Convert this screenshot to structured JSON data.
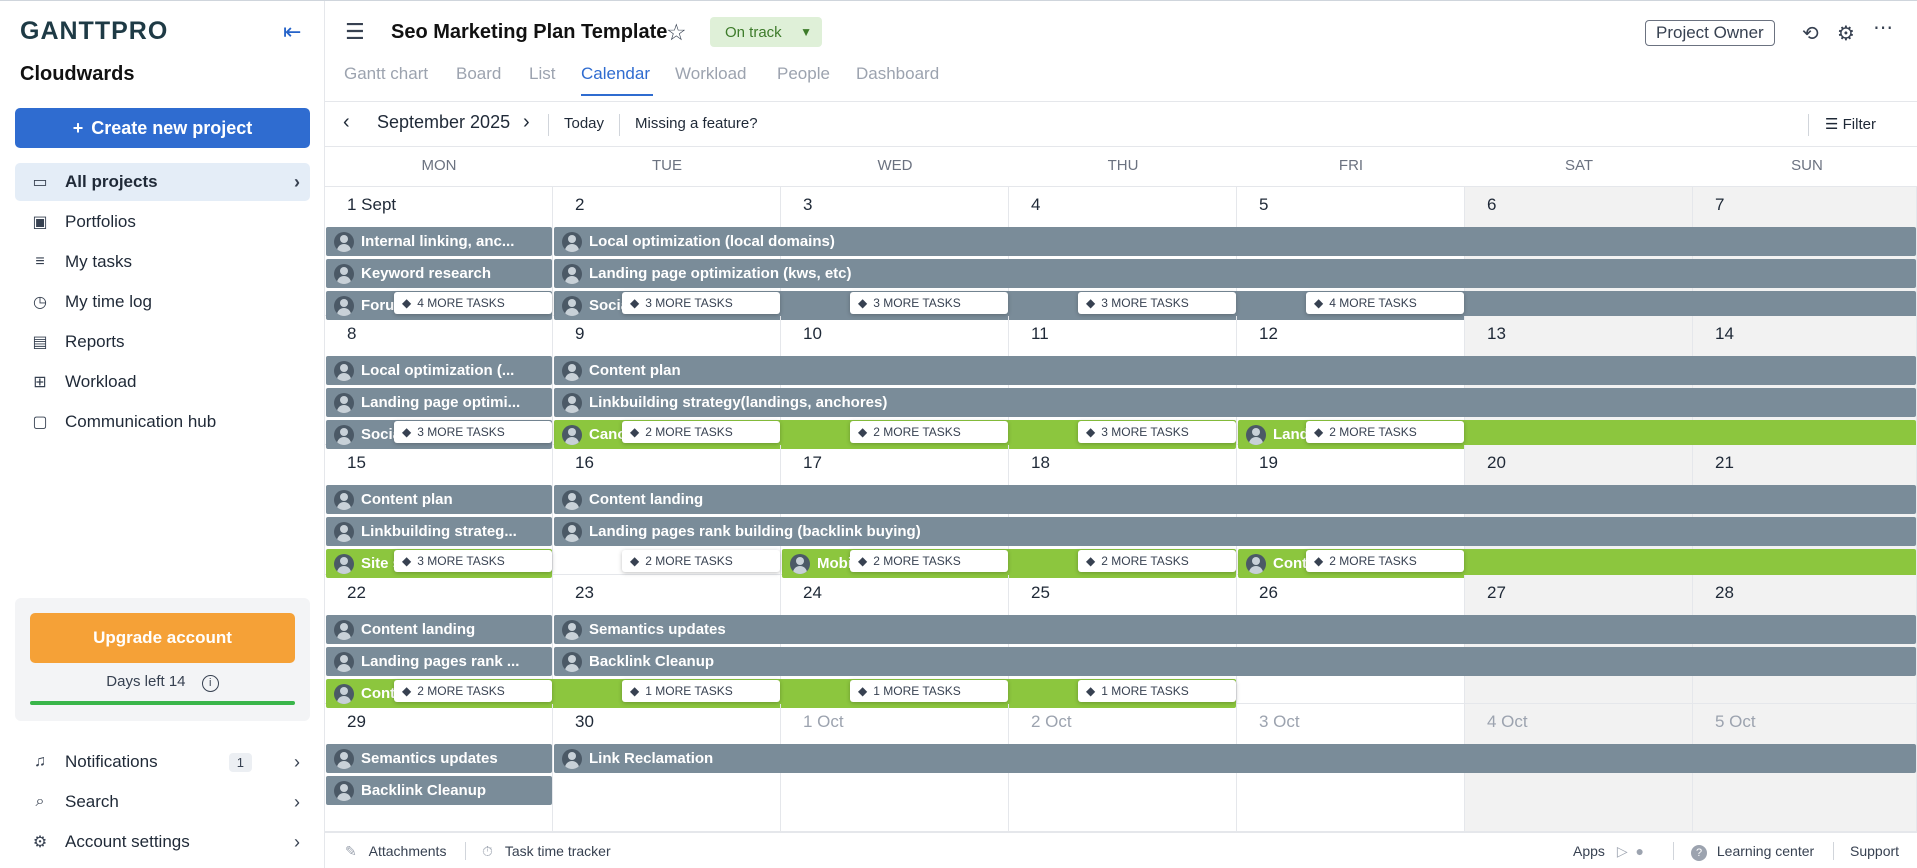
{
  "sidebar": {
    "logo": "GANTTPRO",
    "workspace": "Cloudwards",
    "create_label": "Create new project",
    "items": [
      {
        "label": "All projects",
        "icon": "folder-icon"
      },
      {
        "label": "Portfolios",
        "icon": "briefcase-icon"
      },
      {
        "label": "My tasks",
        "icon": "list-icon"
      },
      {
        "label": "My time log",
        "icon": "clock-icon"
      },
      {
        "label": "Reports",
        "icon": "report-icon"
      },
      {
        "label": "Workload",
        "icon": "grid-icon"
      },
      {
        "label": "Communication hub",
        "icon": "chat-icon"
      }
    ],
    "upgrade_label": "Upgrade account",
    "days_left": "Days left 14",
    "trial_progress": 1.0,
    "bottom": [
      {
        "label": "Notifications",
        "icon": "bell-icon",
        "badge": "1"
      },
      {
        "label": "Search",
        "icon": "search-icon"
      },
      {
        "label": "Account settings",
        "icon": "gear-icon"
      }
    ]
  },
  "header": {
    "project_title": "Seo Marketing Plan Template",
    "status": "On track",
    "owner_label": "Project Owner",
    "tabs": [
      "Gantt chart",
      "Board",
      "List",
      "Calendar",
      "Workload",
      "People",
      "Dashboard"
    ],
    "active_tab": "Calendar"
  },
  "toolbar": {
    "month": "September 2025",
    "today": "Today",
    "missing": "Missing a feature?",
    "filter": "Filter"
  },
  "calendar": {
    "day_names": [
      "MON",
      "TUE",
      "WED",
      "THU",
      "FRI",
      "SAT",
      "SUN"
    ],
    "weeks": [
      {
        "days": [
          "1  Sept",
          "2",
          "3",
          "4",
          "5",
          "6",
          "7"
        ],
        "bars": [
          {
            "start": 0,
            "span": 1,
            "row": 0,
            "text": "Internal linking, anc...",
            "color": "gray"
          },
          {
            "start": 1,
            "span": 6,
            "row": 0,
            "text": "Local optimization (local domains)",
            "color": "gray"
          },
          {
            "start": 0,
            "span": 1,
            "row": 1,
            "text": "Keyword research",
            "color": "gray"
          },
          {
            "start": 1,
            "span": 6,
            "row": 1,
            "text": "Landing page optimization (kws, etc)",
            "color": "gray"
          },
          {
            "start": 0,
            "span": 1,
            "row": 2,
            "text": "Forum",
            "color": "gray"
          },
          {
            "start": 1,
            "span": 6,
            "row": 2,
            "text": "Socia",
            "color": "gray"
          }
        ],
        "more": [
          {
            "day": 0,
            "label": "4 MORE TASKS"
          },
          {
            "day": 1,
            "label": "3 MORE TASKS"
          },
          {
            "day": 2,
            "label": "3 MORE TASKS"
          },
          {
            "day": 3,
            "label": "3 MORE TASKS"
          },
          {
            "day": 4,
            "label": "4 MORE TASKS"
          }
        ]
      },
      {
        "days": [
          "8",
          "9",
          "10",
          "11",
          "12",
          "13",
          "14"
        ],
        "bars": [
          {
            "start": 0,
            "span": 1,
            "row": 0,
            "text": "Local optimization (...",
            "color": "gray"
          },
          {
            "start": 1,
            "span": 6,
            "row": 0,
            "text": "Content plan",
            "color": "gray"
          },
          {
            "start": 0,
            "span": 1,
            "row": 1,
            "text": "Landing page optimi...",
            "color": "gray"
          },
          {
            "start": 1,
            "span": 6,
            "row": 1,
            "text": "Linkbuilding strategy(landings, anchores)",
            "color": "gray"
          },
          {
            "start": 0,
            "span": 1,
            "row": 2,
            "text": "Socia",
            "color": "gray"
          },
          {
            "start": 1,
            "span": 3,
            "row": 2,
            "text": "Cano",
            "color": "green"
          },
          {
            "start": 4,
            "span": 3,
            "row": 2,
            "text": "Land",
            "color": "green"
          }
        ],
        "more": [
          {
            "day": 0,
            "label": "3 MORE TASKS"
          },
          {
            "day": 1,
            "label": "2 MORE TASKS"
          },
          {
            "day": 2,
            "label": "2 MORE TASKS"
          },
          {
            "day": 3,
            "label": "3 MORE TASKS"
          },
          {
            "day": 4,
            "label": "2 MORE TASKS"
          }
        ]
      },
      {
        "days": [
          "15",
          "16",
          "17",
          "18",
          "19",
          "20",
          "21"
        ],
        "bars": [
          {
            "start": 0,
            "span": 1,
            "row": 0,
            "text": "Content plan",
            "color": "gray"
          },
          {
            "start": 1,
            "span": 6,
            "row": 0,
            "text": "Content landing",
            "color": "gray"
          },
          {
            "start": 0,
            "span": 1,
            "row": 1,
            "text": "Linkbuilding strateg...",
            "color": "gray"
          },
          {
            "start": 1,
            "span": 6,
            "row": 1,
            "text": "Landing pages rank building (backlink buying)",
            "color": "gray"
          },
          {
            "start": 0,
            "span": 1,
            "row": 2,
            "text": "Site s",
            "color": "green"
          },
          {
            "start": 2,
            "span": 2,
            "row": 2,
            "text": "Mobi",
            "color": "green"
          },
          {
            "start": 4,
            "span": 3,
            "row": 2,
            "text": "Conte",
            "color": "green"
          }
        ],
        "more": [
          {
            "day": 0,
            "label": "3 MORE TASKS"
          },
          {
            "day": 1,
            "label": "2 MORE TASKS"
          },
          {
            "day": 2,
            "label": "2 MORE TASKS"
          },
          {
            "day": 3,
            "label": "2 MORE TASKS"
          },
          {
            "day": 4,
            "label": "2 MORE TASKS"
          }
        ]
      },
      {
        "days": [
          "22",
          "23",
          "24",
          "25",
          "26",
          "27",
          "28"
        ],
        "bars": [
          {
            "start": 0,
            "span": 1,
            "row": 0,
            "text": "Content landing",
            "color": "gray"
          },
          {
            "start": 1,
            "span": 6,
            "row": 0,
            "text": "Semantics updates",
            "color": "gray"
          },
          {
            "start": 0,
            "span": 1,
            "row": 1,
            "text": "Landing pages rank ...",
            "color": "gray"
          },
          {
            "start": 1,
            "span": 6,
            "row": 1,
            "text": "Backlink Cleanup",
            "color": "gray"
          },
          {
            "start": 0,
            "span": 4,
            "row": 2,
            "text": "Conte",
            "color": "green"
          }
        ],
        "more": [
          {
            "day": 0,
            "label": "2 MORE TASKS"
          },
          {
            "day": 1,
            "label": "1 MORE TASKS"
          },
          {
            "day": 2,
            "label": "1 MORE TASKS"
          },
          {
            "day": 3,
            "label": "1 MORE TASKS"
          }
        ]
      },
      {
        "days": [
          "29",
          "30",
          "1  Oct",
          "2  Oct",
          "3  Oct",
          "4  Oct",
          "5  Oct"
        ],
        "dim_from": 2,
        "bars": [
          {
            "start": 0,
            "span": 1,
            "row": 0,
            "text": "Semantics updates",
            "color": "gray"
          },
          {
            "start": 1,
            "span": 6,
            "row": 0,
            "text": "Link Reclamation",
            "color": "gray"
          },
          {
            "start": 0,
            "span": 1,
            "row": 1,
            "text": "Backlink Cleanup",
            "color": "gray"
          }
        ],
        "more": []
      }
    ]
  },
  "footer": {
    "attachments": "Attachments",
    "tracker": "Task time tracker",
    "apps": "Apps",
    "learning": "Learning center",
    "support": "Support"
  },
  "colors": {
    "accent": "#2f6cd0",
    "bar_gray": "#7a8c99",
    "bar_green": "#8cc63e",
    "upgrade": "#f5a137",
    "status_bg": "#dff0d8"
  }
}
